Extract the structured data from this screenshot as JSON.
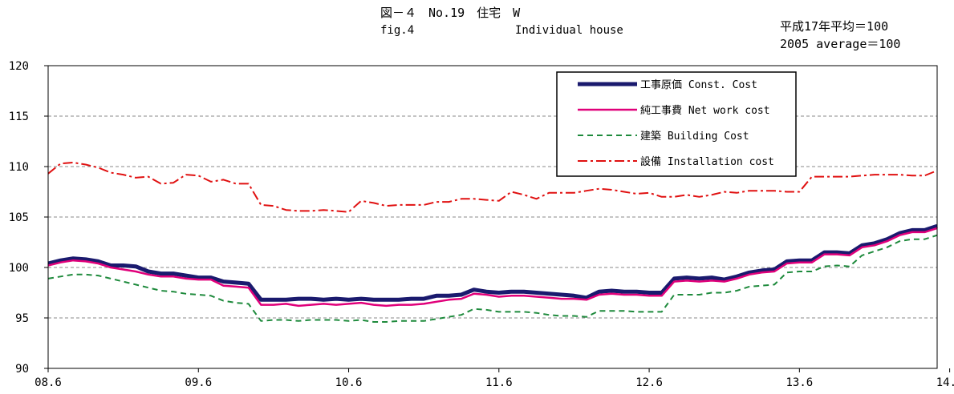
{
  "header": {
    "title_jp": "図－４　No.19　住宅　W",
    "title_en_fig": "fig.4",
    "title_en_name": "Individual house",
    "index_jp": "平成17年平均＝100",
    "index_en": "2005 average＝100"
  },
  "chart_data": {
    "type": "line",
    "x_tick_labels": [
      "08.6",
      "09.6",
      "10.6",
      "11.6",
      "12.6",
      "13.6",
      "14.6"
    ],
    "x_range": [
      "2008-06",
      "2014-06"
    ],
    "y_ticks": [
      90,
      95,
      100,
      105,
      110,
      115,
      120
    ],
    "ylim": [
      90,
      120
    ],
    "grid": "horizontal dashed",
    "legend_position": "top-right",
    "series": [
      {
        "name": "工事原価 Const. Cost",
        "color": "#1a1a6e",
        "style": "solid-thick",
        "values": [
          100.4,
          100.7,
          100.9,
          100.8,
          100.6,
          100.2,
          100.2,
          100.1,
          99.6,
          99.4,
          99.4,
          99.2,
          99.0,
          99.0,
          98.6,
          98.5,
          98.4,
          96.8,
          96.8,
          96.8,
          96.9,
          96.9,
          96.8,
          96.9,
          96.8,
          96.9,
          96.8,
          96.8,
          96.8,
          96.9,
          96.9,
          97.2,
          97.2,
          97.3,
          97.8,
          97.6,
          97.5,
          97.6,
          97.6,
          97.5,
          97.4,
          97.3,
          97.2,
          97.0,
          97.6,
          97.7,
          97.6,
          97.6,
          97.5,
          97.5,
          98.9,
          99.0,
          98.9,
          99.0,
          98.8,
          99.1,
          99.5,
          99.7,
          99.8,
          100.6,
          100.7,
          100.7,
          101.5,
          101.5,
          101.4,
          102.2,
          102.4,
          102.8,
          103.4,
          103.7,
          103.7,
          104.1
        ]
      },
      {
        "name": "純工事費 Net work cost",
        "color": "#e0007a",
        "style": "solid",
        "values": [
          100.2,
          100.5,
          100.7,
          100.6,
          100.4,
          100.0,
          99.8,
          99.6,
          99.3,
          99.1,
          99.1,
          98.9,
          98.8,
          98.8,
          98.2,
          98.1,
          98.0,
          96.3,
          96.3,
          96.4,
          96.2,
          96.3,
          96.4,
          96.3,
          96.4,
          96.5,
          96.3,
          96.2,
          96.3,
          96.3,
          96.4,
          96.6,
          96.8,
          96.9,
          97.4,
          97.3,
          97.1,
          97.2,
          97.2,
          97.1,
          97.0,
          96.9,
          96.9,
          96.8,
          97.3,
          97.4,
          97.3,
          97.3,
          97.2,
          97.2,
          98.6,
          98.7,
          98.6,
          98.7,
          98.6,
          98.9,
          99.3,
          99.5,
          99.6,
          100.4,
          100.5,
          100.5,
          101.3,
          101.3,
          101.2,
          102.0,
          102.2,
          102.6,
          103.2,
          103.5,
          103.5,
          103.9
        ]
      },
      {
        "name": "建築 Building Cost",
        "color": "#1e8a3c",
        "style": "dashed",
        "values": [
          98.9,
          99.1,
          99.3,
          99.3,
          99.2,
          98.9,
          98.6,
          98.3,
          98.0,
          97.7,
          97.6,
          97.4,
          97.3,
          97.2,
          96.7,
          96.5,
          96.4,
          94.7,
          94.8,
          94.8,
          94.7,
          94.8,
          94.8,
          94.8,
          94.7,
          94.8,
          94.6,
          94.6,
          94.7,
          94.7,
          94.7,
          94.9,
          95.1,
          95.3,
          95.9,
          95.8,
          95.6,
          95.6,
          95.6,
          95.5,
          95.3,
          95.2,
          95.2,
          95.1,
          95.7,
          95.7,
          95.7,
          95.6,
          95.6,
          95.6,
          97.3,
          97.3,
          97.3,
          97.5,
          97.5,
          97.7,
          98.1,
          98.2,
          98.3,
          99.5,
          99.6,
          99.6,
          100.1,
          100.2,
          100.1,
          101.2,
          101.6,
          102.0,
          102.6,
          102.8,
          102.8,
          103.2
        ]
      },
      {
        "name": "設備 Installation cost",
        "color": "#e01010",
        "style": "dashdot",
        "values": [
          109.3,
          110.3,
          110.4,
          110.2,
          109.9,
          109.4,
          109.2,
          108.9,
          109.0,
          108.3,
          108.4,
          109.2,
          109.1,
          108.5,
          108.7,
          108.3,
          108.3,
          106.2,
          106.1,
          105.7,
          105.6,
          105.6,
          105.7,
          105.6,
          105.5,
          106.6,
          106.4,
          106.1,
          106.2,
          106.2,
          106.2,
          106.5,
          106.5,
          106.8,
          106.8,
          106.7,
          106.6,
          107.5,
          107.2,
          106.8,
          107.4,
          107.4,
          107.4,
          107.6,
          107.8,
          107.7,
          107.5,
          107.3,
          107.4,
          107.0,
          107.0,
          107.2,
          107.0,
          107.2,
          107.5,
          107.4,
          107.6,
          107.6,
          107.6,
          107.5,
          107.5,
          109.0,
          109.0,
          109.0,
          109.0,
          109.1,
          109.2,
          109.2,
          109.2,
          109.1,
          109.1,
          109.6
        ]
      }
    ]
  }
}
